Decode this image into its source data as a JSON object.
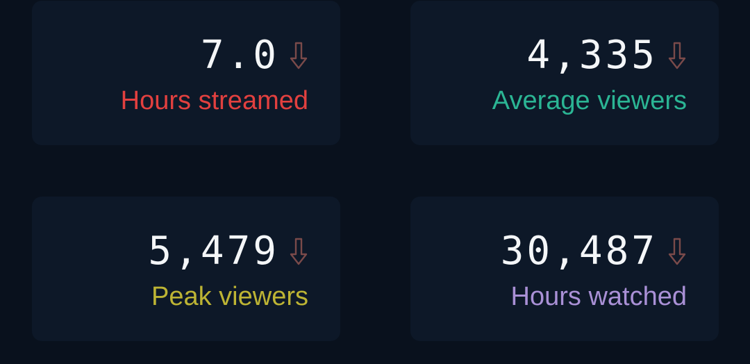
{
  "colors": {
    "background": "#09111d",
    "card": "#0d1828",
    "value_text": "#f4f6f8",
    "down_arrow": "#7a4a4a"
  },
  "stats": [
    {
      "value": "7.0",
      "label": "Hours streamed",
      "label_color": "#e2403f",
      "trend": "down",
      "trend_icon": "arrow-down-icon"
    },
    {
      "value": "4,335",
      "label": "Average viewers",
      "label_color": "#2bb594",
      "trend": "down",
      "trend_icon": "arrow-down-icon"
    },
    {
      "value": "5,479",
      "label": "Peak viewers",
      "label_color": "#bdb434",
      "trend": "down",
      "trend_icon": "arrow-down-icon"
    },
    {
      "value": "30,487",
      "label": "Hours watched",
      "label_color": "#a990d6",
      "trend": "down",
      "trend_icon": "arrow-down-icon"
    }
  ]
}
